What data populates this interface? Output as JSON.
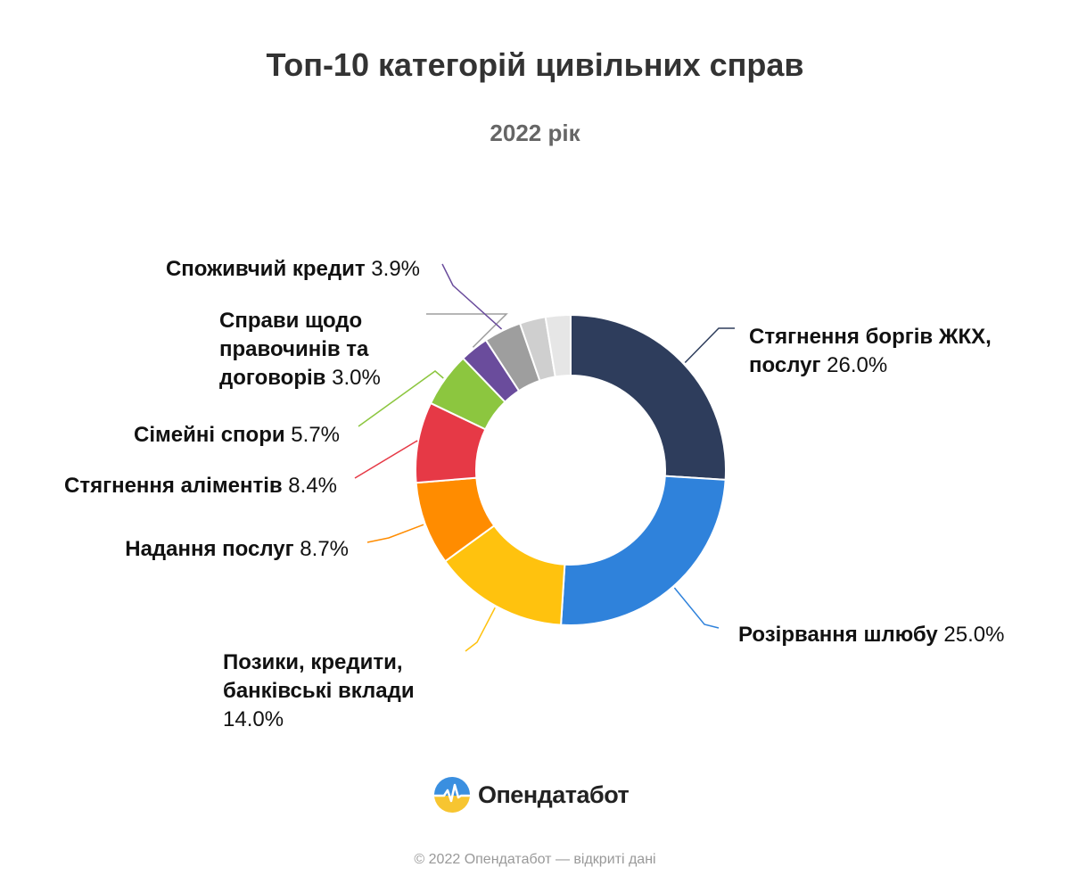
{
  "page": {
    "title": "Топ-10 категорій цивільних справ",
    "subtitle": "2022 рік",
    "logo_text": "Опендатабот",
    "footer": "© 2022 Опендатабот — відкриті дані"
  },
  "chart_data": {
    "type": "pie",
    "title": "Топ-10 категорій цивільних справ",
    "subtitle": "2022 рік",
    "unit": "%",
    "slices": [
      {
        "label": "Стягнення боргів ЖКХ, послуг",
        "value": 26.0,
        "value_text": "26.0%",
        "color": "#2e3d5c"
      },
      {
        "label": "Розірвання шлюбу",
        "value": 25.0,
        "value_text": "25.0%",
        "color": "#2f82db"
      },
      {
        "label": "Позики, кредити, банківські вклади",
        "value": 14.0,
        "value_text": "14.0%",
        "color": "#ffc20e"
      },
      {
        "label": "Надання послуг",
        "value": 8.7,
        "value_text": "8.7%",
        "color": "#ff8c00"
      },
      {
        "label": "Стягнення аліментів",
        "value": 8.4,
        "value_text": "8.4%",
        "color": "#e63946"
      },
      {
        "label": "Сімейні спори",
        "value": 5.7,
        "value_text": "5.7%",
        "color": "#8cc63f"
      },
      {
        "label": "Справи щодо правочинів та договорів",
        "value": 3.0,
        "value_text": "3.0%",
        "color": "#6a4c9c"
      },
      {
        "label": "Споживчий кредит",
        "value": 3.9,
        "value_text": "3.9%",
        "color": "#9e9e9e"
      },
      {
        "label": "",
        "value": 2.7,
        "value_text": "",
        "color": "#cfcfcf"
      },
      {
        "label": "",
        "value": 2.6,
        "value_text": "",
        "color": "#e6e6e6"
      }
    ]
  },
  "colors": {
    "title": "#333333",
    "subtitle": "#666666",
    "footer": "#999999"
  }
}
